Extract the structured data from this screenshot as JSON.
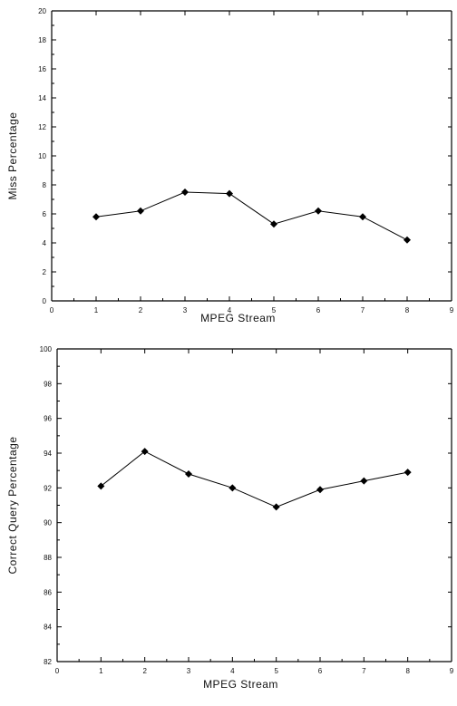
{
  "chart_data": [
    {
      "type": "line",
      "title": "",
      "xlabel": "MPEG Stream",
      "ylabel": "Miss Percentage",
      "xlim": [
        0,
        9
      ],
      "ylim": [
        0,
        20
      ],
      "x_ticks": [
        "0",
        "1",
        "2",
        "3",
        "4",
        "5",
        "6",
        "7",
        "8",
        "9"
      ],
      "y_ticks": [
        "0",
        "2",
        "4",
        "6",
        "8",
        "10",
        "12",
        "14",
        "16",
        "18",
        "20"
      ],
      "grid": false,
      "marker": "diamond",
      "series": [
        {
          "x": [
            1,
            2,
            3,
            4,
            5,
            6,
            7,
            8
          ],
          "values": [
            5.8,
            6.2,
            7.5,
            7.4,
            5.3,
            6.2,
            5.8,
            4.2
          ]
        }
      ]
    },
    {
      "type": "line",
      "title": "",
      "xlabel": "MPEG Stream",
      "ylabel": "Correct Query Percentage",
      "xlim": [
        0,
        9
      ],
      "ylim": [
        82,
        100
      ],
      "x_ticks": [
        "0",
        "1",
        "2",
        "3",
        "4",
        "5",
        "6",
        "7",
        "8",
        "9"
      ],
      "y_ticks": [
        "82",
        "84",
        "86",
        "88",
        "90",
        "92",
        "94",
        "96",
        "98",
        "100"
      ],
      "grid": false,
      "marker": "diamond",
      "series": [
        {
          "x": [
            1,
            2,
            3,
            4,
            5,
            6,
            7,
            8
          ],
          "values": [
            92.1,
            94.1,
            92.8,
            92.0,
            90.9,
            91.9,
            92.4,
            92.9
          ]
        }
      ]
    }
  ]
}
